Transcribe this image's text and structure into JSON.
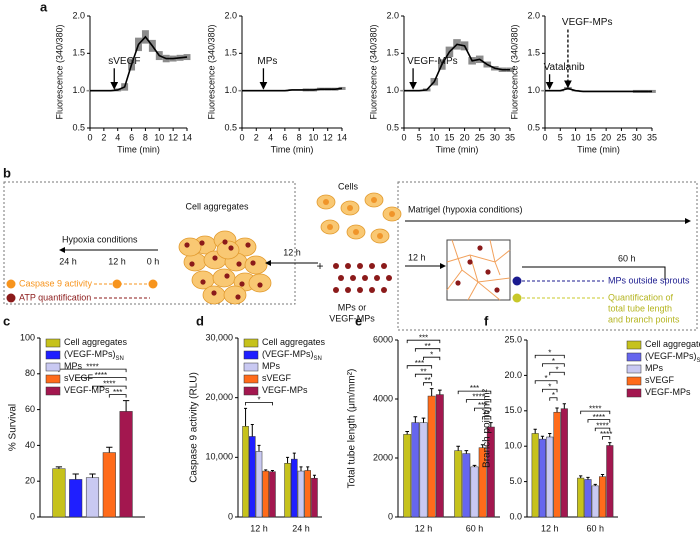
{
  "chart_data": [
    {
      "type": "line",
      "panel": "a",
      "xlabel": "Time (min)",
      "ylabel": "Fluorescence (340/380)",
      "x": [
        0,
        1,
        2,
        3,
        4,
        5,
        6,
        7,
        8,
        9,
        10,
        11,
        12,
        13,
        14
      ],
      "values": [
        1.0,
        1.0,
        1.0,
        1.0,
        1.01,
        1.05,
        1.35,
        1.62,
        1.72,
        1.6,
        1.47,
        1.43,
        1.43,
        1.44,
        1.45
      ],
      "errors": [
        0.01,
        0.01,
        0.01,
        0.01,
        0.02,
        0.05,
        0.08,
        0.09,
        0.09,
        0.08,
        0.06,
        0.05,
        0.04,
        0.04,
        0.04
      ],
      "color": "#000000",
      "error_color": "#8c8c8c",
      "xlim": [
        0,
        14
      ],
      "xticks": [
        0,
        2,
        4,
        6,
        8,
        10,
        12,
        14
      ],
      "ylim": [
        0.5,
        2
      ],
      "yticks": [
        0.5,
        {
          "value": 1,
          "label": "1.0"
        },
        1.5,
        {
          "value": 2,
          "label": "2.0"
        }
      ],
      "annotations": [
        {
          "text": "sVEGF",
          "x": 3.5,
          "y_from": 1.3,
          "y_to": 1.03
        }
      ]
    },
    {
      "type": "line",
      "xlabel": "Time (min)",
      "ylabel": "Fluorescence (340/380)",
      "x": [
        0,
        1,
        2,
        3,
        4,
        5,
        6,
        7,
        8,
        9,
        10,
        11,
        12,
        13,
        14
      ],
      "values": [
        1.0,
        1.0,
        1.0,
        1.0,
        1.0,
        1.0,
        1.0,
        1.01,
        1.01,
        1.01,
        1.01,
        1.02,
        1.02,
        1.02,
        1.03
      ],
      "errors": [
        0.01,
        0.01,
        0.01,
        0.01,
        0.01,
        0.01,
        0.01,
        0.01,
        0.01,
        0.02,
        0.02,
        0.02,
        0.02,
        0.02,
        0.02
      ],
      "color": "#000000",
      "error_color": "#8c8c8c",
      "xlim": [
        0,
        14
      ],
      "xticks": [
        0,
        2,
        4,
        6,
        8,
        10,
        12,
        14
      ],
      "ylim": [
        0.5,
        2
      ],
      "yticks": [
        0.5,
        {
          "value": 1,
          "label": "1.0"
        },
        1.5,
        {
          "value": 2,
          "label": "2.0"
        }
      ],
      "annotations": [
        {
          "text": "MPs",
          "x": 3,
          "y_from": 1.3,
          "y_to": 1.03
        }
      ]
    },
    {
      "type": "line",
      "xlabel": "Time (min)",
      "ylabel": "Fluorescence (340/380)",
      "x": [
        0,
        2.5,
        5,
        7.5,
        10,
        12.5,
        15,
        17.5,
        20,
        22.5,
        25,
        27.5,
        30,
        32.5,
        35
      ],
      "values": [
        1.0,
        1.0,
        1.0,
        1.01,
        1.12,
        1.35,
        1.52,
        1.62,
        1.6,
        1.4,
        1.42,
        1.35,
        1.3,
        1.28,
        1.28
      ],
      "errors": [
        0.01,
        0.01,
        0.01,
        0.02,
        0.05,
        0.07,
        0.07,
        0.07,
        0.06,
        0.05,
        0.05,
        0.04,
        0.03,
        0.03,
        0.03
      ],
      "color": "#000000",
      "error_color": "#8c8c8c",
      "xlim": [
        0,
        35
      ],
      "xticks": [
        0,
        5,
        10,
        15,
        20,
        25,
        30,
        35
      ],
      "ylim": [
        0.5,
        2
      ],
      "yticks": [
        0.5,
        {
          "value": 1,
          "label": "1.0"
        },
        1.5,
        {
          "value": 2,
          "label": "2.0"
        }
      ],
      "annotations": [
        {
          "text": "VEGF-MPs",
          "x": 3,
          "y_from": 1.3,
          "y_to": 1.03
        }
      ]
    },
    {
      "type": "line",
      "xlabel": "Time (min)",
      "ylabel": "Fluorescence (340/380)",
      "x": [
        0,
        2.5,
        5,
        7.5,
        10,
        12.5,
        15,
        17.5,
        20,
        22.5,
        25,
        27.5,
        30,
        32.5,
        35
      ],
      "values": [
        1.0,
        1.0,
        1.0,
        1.03,
        1.0,
        0.99,
        0.99,
        0.99,
        0.99,
        0.99,
        0.99,
        0.99,
        0.99,
        0.99,
        0.99
      ],
      "errors": [
        0.01,
        0.01,
        0.01,
        0.02,
        0.01,
        0.01,
        0.01,
        0.01,
        0.01,
        0.01,
        0.01,
        0.01,
        0.02,
        0.02,
        0.02
      ],
      "color": "#000000",
      "error_color": "#8c8c8c",
      "xlim": [
        0,
        35
      ],
      "xticks": [
        0,
        5,
        10,
        15,
        20,
        25,
        30,
        35
      ],
      "ylim": [
        0.5,
        2
      ],
      "yticks": [
        0.5,
        {
          "value": 1,
          "label": "1.0"
        },
        1.5,
        {
          "value": 2,
          "label": "2.0"
        }
      ],
      "annotations": [
        {
          "text": "Vatalanib",
          "x": 1.5,
          "y_from": 1.22,
          "y_to": 1.03
        },
        {
          "text": "VEGF-MPs",
          "x": 7.5,
          "y_from": 1.82,
          "y_to": 1.05,
          "dashed": true
        }
      ]
    },
    {
      "type": "bar",
      "panel": "c",
      "ylabel": "% Survival",
      "categories": [
        null
      ],
      "ylim": [
        0,
        100
      ],
      "yticks": [
        0,
        20,
        40,
        60,
        80,
        100
      ],
      "legend": "upper left",
      "series": [
        {
          "name": "Cell aggregates",
          "color": "#c6c21c",
          "values": [
            27
          ],
          "errors": [
            1
          ]
        },
        {
          "name": "(VEGF-MPs)",
          "subscript": "SN",
          "color": "#1f1fff",
          "values": [
            21
          ],
          "errors": [
            3
          ]
        },
        {
          "name": "MPs",
          "color": "#c9c9f2",
          "values": [
            22
          ],
          "errors": [
            2
          ]
        },
        {
          "name": "sVEGF",
          "color": "#ff6b1a",
          "values": [
            36
          ],
          "errors": [
            3
          ]
        },
        {
          "name": "VEGF-MPs",
          "color": "#a3174f",
          "values": [
            59
          ],
          "errors": [
            6
          ]
        }
      ],
      "significance": [
        {
          "group": 0,
          "from": 3,
          "to": 4,
          "label": "***"
        },
        {
          "group": 0,
          "from": 2,
          "to": 4,
          "label": "****"
        },
        {
          "group": 0,
          "from": 1,
          "to": 4,
          "label": "****"
        },
        {
          "group": 0,
          "from": 0,
          "to": 4,
          "label": "****"
        }
      ]
    },
    {
      "type": "bar",
      "panel": "d",
      "ylabel": "Caspase 9 activity (RLU)",
      "categories": [
        "12 h",
        "24 h"
      ],
      "ylim": [
        0,
        30000
      ],
      "yticks": [
        0,
        {
          "value": 10000,
          "label": "10,000"
        },
        {
          "value": 20000,
          "label": "20,000"
        },
        {
          "value": 30000,
          "label": "30,000"
        }
      ],
      "legend": "upper left",
      "series": [
        {
          "name": "Cell aggregates",
          "color": "#c6c21c",
          "values": [
            15200,
            9000
          ],
          "errors": [
            3000,
            1000
          ]
        },
        {
          "name": "(VEGF-MPs)",
          "subscript": "SN",
          "color": "#1f1fff",
          "values": [
            13500,
            9700
          ],
          "errors": [
            2000,
            1000
          ]
        },
        {
          "name": "MPs",
          "color": "#c9c9f2",
          "values": [
            11000,
            7700
          ],
          "errors": [
            1000,
            700
          ]
        },
        {
          "name": "sVEGF",
          "color": "#ff6b1a",
          "values": [
            7700,
            7800
          ],
          "errors": [
            200,
            600
          ]
        },
        {
          "name": "VEGF-MPs",
          "color": "#a3174f",
          "values": [
            7600,
            6500
          ],
          "errors": [
            200,
            500
          ]
        }
      ],
      "significance": [
        {
          "group": 0,
          "from": 0,
          "to": 4,
          "label": "*"
        }
      ]
    },
    {
      "type": "bar",
      "panel": "e",
      "ylabel": "Total tube length (μm/mm²)",
      "categories": [
        "12 h",
        "60 h"
      ],
      "ylim": [
        0,
        6000
      ],
      "yticks": [
        0,
        2000,
        4000,
        6000
      ],
      "series": [
        {
          "color": "#c6c21c",
          "values": [
            2800,
            2250
          ],
          "errors": [
            100,
            150
          ]
        },
        {
          "color": "#6666ee",
          "values": [
            3200,
            2150
          ],
          "errors": [
            200,
            100
          ]
        },
        {
          "color": "#c9c9f2",
          "values": [
            3200,
            1700
          ],
          "errors": [
            150,
            50
          ]
        },
        {
          "color": "#ff6b1a",
          "values": [
            4100,
            2350
          ],
          "errors": [
            250,
            100
          ]
        },
        {
          "color": "#a3174f",
          "values": [
            4150,
            3050
          ],
          "errors": [
            150,
            150
          ]
        }
      ],
      "significance": [
        {
          "group": 0,
          "from": 2,
          "to": 3,
          "label": "**"
        },
        {
          "group": 0,
          "from": 1,
          "to": 3,
          "label": "**"
        },
        {
          "group": 0,
          "from": 0,
          "to": 3,
          "label": "***"
        },
        {
          "group": 0,
          "from": 2,
          "to": 4,
          "label": "*"
        },
        {
          "group": 0,
          "from": 1,
          "to": 4,
          "label": "**"
        },
        {
          "group": 0,
          "from": 0,
          "to": 4,
          "label": "***"
        },
        {
          "group": 1,
          "from": 3,
          "to": 4,
          "label": "**"
        },
        {
          "group": 1,
          "from": 2,
          "to": 4,
          "label": "***"
        },
        {
          "group": 1,
          "from": 1,
          "to": 4,
          "label": "****"
        },
        {
          "group": 1,
          "from": 0,
          "to": 4,
          "label": "***"
        }
      ]
    },
    {
      "type": "bar",
      "panel": "f",
      "ylabel": "Branch point/mm²",
      "categories": [
        "12 h",
        "60 h"
      ],
      "ylim": [
        0,
        25
      ],
      "yticks": [
        {
          "value": 0,
          "label": "0.0"
        },
        {
          "value": 5,
          "label": "5.0"
        },
        {
          "value": 10,
          "label": "10.0"
        },
        {
          "value": 15,
          "label": "15.0"
        },
        {
          "value": 20,
          "label": "20.0"
        },
        {
          "value": 25,
          "label": "25.0"
        }
      ],
      "legend": "right",
      "series": [
        {
          "name": "Cell aggregates",
          "color": "#c6c21c",
          "values": [
            11.8,
            5.5
          ],
          "errors": [
            0.6,
            0.3
          ]
        },
        {
          "name": "(VEGF-MPs)",
          "subscript": "SN",
          "color": "#6666ee",
          "values": [
            11,
            5.3
          ],
          "errors": [
            0.4,
            0.3
          ]
        },
        {
          "name": "MPs",
          "color": "#c9c9f2",
          "values": [
            11.3,
            4.4
          ],
          "errors": [
            0.5,
            0.2
          ]
        },
        {
          "name": "sVEGF",
          "color": "#ff6b1a",
          "values": [
            14.8,
            5.7
          ],
          "errors": [
            0.6,
            0.3
          ]
        },
        {
          "name": "VEGF-MPs",
          "color": "#a3174f",
          "values": [
            15.3,
            10.1
          ],
          "errors": [
            0.7,
            0.4
          ]
        }
      ],
      "significance": [
        {
          "group": 0,
          "from": 2,
          "to": 3,
          "label": "*"
        },
        {
          "group": 0,
          "from": 1,
          "to": 3,
          "label": "*"
        },
        {
          "group": 0,
          "from": 0,
          "to": 3,
          "label": "*"
        },
        {
          "group": 0,
          "from": 2,
          "to": 4,
          "label": "*"
        },
        {
          "group": 0,
          "from": 1,
          "to": 4,
          "label": "*"
        },
        {
          "group": 0,
          "from": 0,
          "to": 4,
          "label": "*"
        },
        {
          "group": 1,
          "from": 3,
          "to": 4,
          "label": "****"
        },
        {
          "group": 1,
          "from": 2,
          "to": 4,
          "label": "****"
        },
        {
          "group": 1,
          "from": 1,
          "to": 4,
          "label": "****"
        },
        {
          "group": 1,
          "from": 0,
          "to": 4,
          "label": "****"
        }
      ]
    }
  ],
  "diagram": {
    "panel": "b",
    "cells": "Cells",
    "hypoxia": "Hypoxia conditions",
    "times": [
      "24 h",
      "12 h",
      "0 h"
    ],
    "aggregates": "Cell aggregates",
    "caspase": "Caspase 9 activity",
    "atp": "ATP quantification",
    "arrow_time": "12 h",
    "plus": "+",
    "particles": [
      "MPs or",
      "VEGF-MPs"
    ],
    "matrigel": "Matrigel (hypoxia conditions)",
    "start": "12 h",
    "end": "60 h",
    "outside": "MPs outside sprouts",
    "quantification": [
      "Quantification of",
      "total tube length",
      "and branch points"
    ]
  }
}
